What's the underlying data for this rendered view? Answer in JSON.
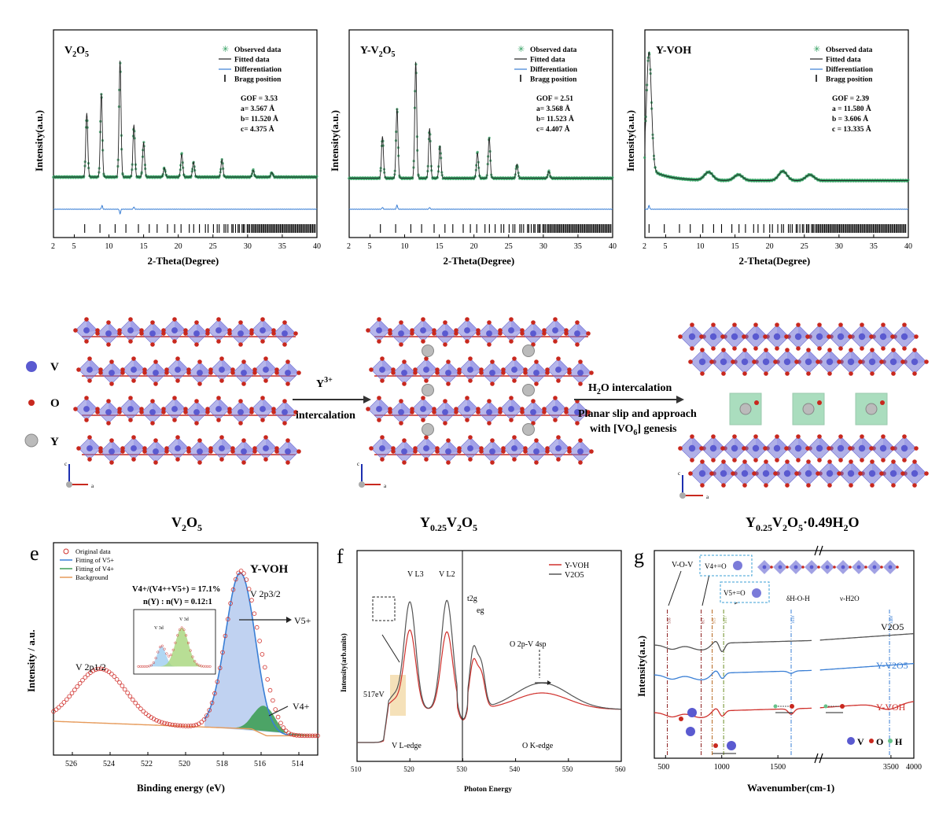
{
  "colors": {
    "observed": "#2e9e5e",
    "fitted": "#222222",
    "differentiation": "#3a7fd5",
    "bragg": "#000000",
    "vanadium": "#5a5ad0",
    "oxygen": "#c8281e",
    "yttrium": "#bbbbbb",
    "green_polyhedra": "#66c28a",
    "y_voh": "#d0302c",
    "v2o5_curve": "#555555",
    "y_v2o5_curve": "#3a7fd5",
    "v5_fill": "#b9cdf0",
    "v4_fill": "#3f9e57",
    "background_line": "#e69a5a"
  },
  "xrd": [
    {
      "title": "V2O5",
      "title_main": "V",
      "title_sub1": "2",
      "title_mid": "O",
      "title_sub2": "5",
      "legend": [
        "Observed data",
        "Fitted data",
        "Differentiation",
        "Bragg position"
      ],
      "stats": [
        "GOF = 3.53",
        "a= 3.567 Å",
        "b= 11.520 Å",
        "c=  4.375 Å"
      ],
      "xlabel": "2-Theta(Degree)",
      "ylabel": "Intensity(a.u.)",
      "xticks": [
        "2",
        "5",
        "10",
        "15",
        "20",
        "25",
        "30",
        "35",
        "40"
      ]
    },
    {
      "title": "Y-V2O5",
      "title_main": "Y-V",
      "title_sub1": "2",
      "title_mid": "O",
      "title_sub2": "5",
      "legend": [
        "Observed data",
        "Fitted data",
        "Differentiation",
        "Bragg position"
      ],
      "stats": [
        "GOF = 2.51",
        "a= 3.568 Å",
        "b= 11.523 Å",
        "c=  4.407 Å"
      ],
      "xlabel": "2-Theta(Degree)",
      "ylabel": "Intensity(a.u.)",
      "xticks": [
        "2",
        "5",
        "10",
        "15",
        "20",
        "25",
        "30",
        "35",
        "40"
      ]
    },
    {
      "title": "Y-VOH",
      "title_main": "Y-VOH",
      "title_sub1": "",
      "title_mid": "",
      "title_sub2": "",
      "legend": [
        "Observed data",
        "Fitted data",
        "Differentiation",
        "Bragg position"
      ],
      "stats": [
        "GOF = 2.39",
        "a = 11.580 Å",
        "b = 3.606 Å",
        "c = 13.335 Å"
      ],
      "xlabel": "2-Theta(Degree)",
      "ylabel": "Intensity(a.u.)",
      "xticks": [
        "2",
        "5",
        "10",
        "15",
        "20",
        "25",
        "30",
        "35",
        "40"
      ]
    }
  ],
  "structures": {
    "legend": [
      "V",
      "O",
      "Y"
    ],
    "arrow1": {
      "top_main": "Y",
      "top_sup": "3+",
      "bottom": "intercalation"
    },
    "arrow2": {
      "line1_a": "H",
      "line1_sub": "2",
      "line1_b": "O intercalation",
      "line2": "Planar slip and approach",
      "line3_a": "with [VO",
      "line3_sub": "6",
      "line3_b": "] genesis"
    },
    "axis_c": "c",
    "axis_a": "a",
    "labels": {
      "s1": {
        "a": "V",
        "s1": "2",
        "b": "O",
        "s2": "5"
      },
      "s2": {
        "a": "Y",
        "s1": "0.25",
        "b": "V",
        "s2": "2",
        "c": "O",
        "s3": "5"
      },
      "s3": {
        "a": "Y",
        "s1": "0.25",
        "b": "V",
        "s2": "2",
        "c": "O",
        "s3": "5",
        "d": "·0.49H",
        "s4": "2",
        "e": "O"
      }
    }
  },
  "panel_e": {
    "letter": "e",
    "legend": [
      "Original data",
      "Fitting of V5+",
      "Fitting of V4+",
      "Background"
    ],
    "sample": "Y-VOH",
    "ratio_line": "V4+/(V4++V5+) = 17.1%",
    "ratio2": "n(Y) : n(V) = 0.12:1",
    "v2p32": "V 2p3/2",
    "v2p12": "V 2p1/2",
    "v5_label": "V5+",
    "v4_label": "V4+",
    "inset_labels": [
      "V 3d",
      "V 3d"
    ],
    "xlabel": "Binding energy (eV)",
    "ylabel": "Intensity / a.u.",
    "xticks": [
      "526",
      "524",
      "522",
      "520",
      "518",
      "516",
      "514"
    ]
  },
  "panel_f": {
    "letter": "f",
    "legend": [
      "Y-VOH",
      "V2O5"
    ],
    "peaks": [
      "V L3",
      "V L2",
      "t2g",
      "eg",
      "O 2p-V 4sp",
      "517eV"
    ],
    "edges": [
      "V L-edge",
      "O K-edge"
    ],
    "xlabel": "Photon Energy",
    "ylabel": "Intensity(arb.units)",
    "xticks": [
      "510",
      "520",
      "530",
      "540",
      "550",
      "560"
    ]
  },
  "panel_g": {
    "letter": "g",
    "mode_labels": [
      "V-O-V",
      "V4+=O",
      "V5+=O",
      "δH-O-H",
      "ν-H2O"
    ],
    "line_positions": [
      "516",
      "817",
      "915",
      "1017",
      "1618",
      "3468"
    ],
    "series_labels": [
      "V2O5",
      "Y-V2O5",
      "Y-VOH"
    ],
    "atom_legend": [
      "V",
      "O",
      "H"
    ],
    "xlabel": "Wavenumber(cm-1)",
    "ylabel": "Intensity(a.u.)",
    "xticks": [
      "500",
      "1000",
      "1500",
      "3500",
      "4000"
    ]
  },
  "chart_data": [
    {
      "type": "line",
      "title": "V2O5",
      "xlabel": "2-Theta(Degree)",
      "ylabel": "Intensity(a.u.)",
      "xlim": [
        2,
        40
      ],
      "ylim": [
        0,
        1
      ],
      "baseline": 0.06,
      "peaks": [
        [
          6.8,
          0.55
        ],
        [
          8.9,
          0.72
        ],
        [
          11.6,
          1.0
        ],
        [
          13.6,
          0.45
        ],
        [
          15.0,
          0.3
        ],
        [
          18.0,
          0.08
        ],
        [
          20.5,
          0.2
        ],
        [
          22.2,
          0.13
        ],
        [
          26.3,
          0.15
        ],
        [
          30.8,
          0.06
        ],
        [
          33.5,
          0.04
        ]
      ],
      "diff_peaks": [
        [
          9.0,
          0.8
        ],
        [
          11.6,
          -1.0
        ],
        [
          13.6,
          0.5
        ]
      ],
      "bragg_start": 6.5
    },
    {
      "type": "line",
      "title": "Y-V2O5",
      "xlabel": "2-Theta(Degree)",
      "ylabel": "Intensity(a.u.)",
      "xlim": [
        2,
        40
      ],
      "ylim": [
        0,
        1
      ],
      "baseline": 0.05,
      "peaks": [
        [
          6.8,
          0.36
        ],
        [
          8.9,
          0.6
        ],
        [
          11.6,
          1.0
        ],
        [
          13.6,
          0.43
        ],
        [
          15.1,
          0.28
        ],
        [
          20.5,
          0.22
        ],
        [
          22.2,
          0.35
        ],
        [
          26.2,
          0.12
        ],
        [
          30.8,
          0.06
        ]
      ],
      "diff_peaks": [
        [
          6.8,
          0.4
        ],
        [
          8.9,
          0.9
        ],
        [
          13.6,
          0.4
        ]
      ],
      "bragg_start": 6.5
    },
    {
      "type": "line",
      "title": "Y-VOH",
      "xlabel": "2-Theta(Degree)",
      "ylabel": "Intensity(a.u.)",
      "xlim": [
        2,
        40
      ],
      "ylim": [
        0,
        1
      ],
      "baseline": 0.03,
      "peaks": [
        [
          2.6,
          1.0
        ],
        [
          11.2,
          0.07
        ],
        [
          15.5,
          0.05
        ],
        [
          21.9,
          0.08
        ],
        [
          25.8,
          0.05
        ]
      ],
      "diff_peaks": [
        [
          2.6,
          0.8
        ]
      ],
      "bragg_start": 2.6
    },
    {
      "type": "line",
      "title": "Y-VOH",
      "xlabel": "Binding energy (eV)",
      "ylabel": "Intensity / a.u.",
      "xlim": [
        527,
        513
      ],
      "ylim": [
        0,
        1
      ],
      "series": [
        {
          "name": "Original data",
          "kind": "scatter"
        },
        {
          "name": "Fitting of V5+",
          "center": 517.1,
          "height": 0.86
        },
        {
          "name": "Fitting of V4+",
          "center": 515.8,
          "height": 0.16
        },
        {
          "name": "Background"
        }
      ],
      "peaks": {
        "V 2p3/2": 517.1,
        "V 2p1/2": 524.5
      }
    },
    {
      "type": "line",
      "xlabel": "Photon Energy",
      "ylabel": "Intensity(arb.units)",
      "xlim": [
        510,
        560
      ],
      "ylim": [
        0,
        1
      ],
      "series": [
        {
          "name": "Y-VOH",
          "peaks": [
            [
              517,
              0.25
            ],
            [
              520,
              0.68
            ],
            [
              527,
              0.67
            ],
            [
              532,
              0.48
            ],
            [
              533.5,
              0.4
            ],
            [
              545,
              0.3
            ]
          ]
        },
        {
          "name": "V2O5",
          "peaks": [
            [
              517,
              0.28
            ],
            [
              520,
              0.85
            ],
            [
              527,
              0.86
            ],
            [
              532,
              0.55
            ],
            [
              533.5,
              0.45
            ],
            [
              545,
              0.36
            ]
          ]
        }
      ]
    },
    {
      "type": "line",
      "xlabel": "Wavenumber(cm-1)",
      "ylabel": "Intensity(a.u.)",
      "xlim": [
        400,
        4000
      ],
      "series": [
        {
          "name": "V2O5"
        },
        {
          "name": "Y-V2O5"
        },
        {
          "name": "Y-VOH"
        }
      ],
      "marked_positions": [
        516,
        817,
        915,
        1017,
        1618,
        3468
      ]
    }
  ]
}
